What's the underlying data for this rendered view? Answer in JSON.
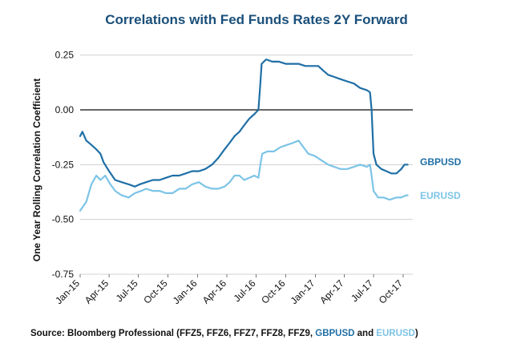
{
  "chart_data": {
    "type": "line",
    "title": "Correlations with Fed Funds Rates 2Y Forward",
    "ylabel": "One Year Rolling Correlation Coefficient",
    "xlabel": "",
    "ylim": [
      -0.75,
      0.3
    ],
    "yticks": [
      "0.25",
      "0.00",
      "-0.25",
      "-0.50",
      "-0.75"
    ],
    "ytick_values": [
      0.25,
      0.0,
      -0.25,
      -0.5,
      -0.75
    ],
    "xticks": [
      "Jan-15",
      "Apr-15",
      "Jul-15",
      "Oct-15",
      "Jan-16",
      "Apr-16",
      "Jul-16",
      "Oct-16",
      "Jan-17",
      "Apr-17",
      "Jul-17",
      "Oct-17"
    ],
    "xlim": [
      "2015-01-01",
      "2017-10-31"
    ],
    "grid": true,
    "colors": {
      "title": "#1a4f7a",
      "GBPUSD": "#1f6fa6",
      "EURUSD": "#7cc4e6",
      "grid": "#c8c8c8",
      "zero": "#333333"
    },
    "series": [
      {
        "name": "GBPUSD",
        "points": [
          [
            "2015-01-01",
            -0.12
          ],
          [
            "2015-01-08",
            -0.1
          ],
          [
            "2015-01-20",
            -0.14
          ],
          [
            "2015-02-05",
            -0.16
          ],
          [
            "2015-02-20",
            -0.18
          ],
          [
            "2015-03-05",
            -0.2
          ],
          [
            "2015-03-15",
            -0.24
          ],
          [
            "2015-04-01",
            -0.28
          ],
          [
            "2015-04-20",
            -0.32
          ],
          [
            "2015-05-10",
            -0.33
          ],
          [
            "2015-06-01",
            -0.34
          ],
          [
            "2015-06-20",
            -0.35
          ],
          [
            "2015-07-05",
            -0.34
          ],
          [
            "2015-07-25",
            -0.33
          ],
          [
            "2015-08-15",
            -0.32
          ],
          [
            "2015-09-05",
            -0.32
          ],
          [
            "2015-09-25",
            -0.31
          ],
          [
            "2015-10-15",
            -0.3
          ],
          [
            "2015-11-05",
            -0.3
          ],
          [
            "2015-11-25",
            -0.29
          ],
          [
            "2015-12-15",
            -0.28
          ],
          [
            "2016-01-05",
            -0.28
          ],
          [
            "2016-01-25",
            -0.27
          ],
          [
            "2016-02-15",
            -0.25
          ],
          [
            "2016-03-05",
            -0.22
          ],
          [
            "2016-03-25",
            -0.18
          ],
          [
            "2016-04-10",
            -0.15
          ],
          [
            "2016-04-25",
            -0.12
          ],
          [
            "2016-05-10",
            -0.1
          ],
          [
            "2016-05-25",
            -0.07
          ],
          [
            "2016-06-10",
            -0.04
          ],
          [
            "2016-06-25",
            -0.02
          ],
          [
            "2016-07-08",
            0.0
          ],
          [
            "2016-07-14",
            0.12
          ],
          [
            "2016-07-18",
            0.21
          ],
          [
            "2016-08-01",
            0.23
          ],
          [
            "2016-08-20",
            0.22
          ],
          [
            "2016-09-10",
            0.22
          ],
          [
            "2016-10-01",
            0.21
          ],
          [
            "2016-10-20",
            0.21
          ],
          [
            "2016-11-10",
            0.21
          ],
          [
            "2016-12-01",
            0.2
          ],
          [
            "2016-12-20",
            0.2
          ],
          [
            "2017-01-10",
            0.2
          ],
          [
            "2017-01-25",
            0.18
          ],
          [
            "2017-02-10",
            0.16
          ],
          [
            "2017-03-01",
            0.15
          ],
          [
            "2017-03-20",
            0.14
          ],
          [
            "2017-04-10",
            0.13
          ],
          [
            "2017-05-01",
            0.12
          ],
          [
            "2017-05-20",
            0.1
          ],
          [
            "2017-06-10",
            0.09
          ],
          [
            "2017-06-20",
            0.08
          ],
          [
            "2017-06-25",
            0.0
          ],
          [
            "2017-07-01",
            -0.2
          ],
          [
            "2017-07-10",
            -0.25
          ],
          [
            "2017-07-25",
            -0.27
          ],
          [
            "2017-08-10",
            -0.28
          ],
          [
            "2017-08-25",
            -0.29
          ],
          [
            "2017-09-10",
            -0.29
          ],
          [
            "2017-09-25",
            -0.27
          ],
          [
            "2017-10-05",
            -0.25
          ],
          [
            "2017-10-15",
            -0.25
          ]
        ]
      },
      {
        "name": "EURUSD",
        "points": [
          [
            "2015-01-01",
            -0.46
          ],
          [
            "2015-01-20",
            -0.42
          ],
          [
            "2015-02-05",
            -0.34
          ],
          [
            "2015-02-20",
            -0.3
          ],
          [
            "2015-03-05",
            -0.32
          ],
          [
            "2015-03-20",
            -0.3
          ],
          [
            "2015-04-05",
            -0.34
          ],
          [
            "2015-04-20",
            -0.37
          ],
          [
            "2015-05-10",
            -0.39
          ],
          [
            "2015-06-01",
            -0.4
          ],
          [
            "2015-06-20",
            -0.38
          ],
          [
            "2015-07-10",
            -0.37
          ],
          [
            "2015-07-25",
            -0.36
          ],
          [
            "2015-08-15",
            -0.37
          ],
          [
            "2015-09-05",
            -0.37
          ],
          [
            "2015-09-25",
            -0.38
          ],
          [
            "2015-10-15",
            -0.38
          ],
          [
            "2015-11-05",
            -0.36
          ],
          [
            "2015-11-25",
            -0.36
          ],
          [
            "2015-12-15",
            -0.34
          ],
          [
            "2016-01-05",
            -0.33
          ],
          [
            "2016-01-25",
            -0.35
          ],
          [
            "2016-02-15",
            -0.36
          ],
          [
            "2016-03-05",
            -0.36
          ],
          [
            "2016-03-25",
            -0.35
          ],
          [
            "2016-04-10",
            -0.33
          ],
          [
            "2016-04-25",
            -0.3
          ],
          [
            "2016-05-10",
            -0.3
          ],
          [
            "2016-05-25",
            -0.32
          ],
          [
            "2016-06-10",
            -0.31
          ],
          [
            "2016-06-25",
            -0.3
          ],
          [
            "2016-07-08",
            -0.31
          ],
          [
            "2016-07-14",
            -0.25
          ],
          [
            "2016-07-20",
            -0.2
          ],
          [
            "2016-08-05",
            -0.19
          ],
          [
            "2016-08-25",
            -0.19
          ],
          [
            "2016-09-15",
            -0.17
          ],
          [
            "2016-10-05",
            -0.16
          ],
          [
            "2016-10-25",
            -0.15
          ],
          [
            "2016-11-10",
            -0.14
          ],
          [
            "2016-11-25",
            -0.17
          ],
          [
            "2016-12-10",
            -0.2
          ],
          [
            "2016-12-30",
            -0.21
          ],
          [
            "2017-01-20",
            -0.23
          ],
          [
            "2017-02-10",
            -0.25
          ],
          [
            "2017-03-01",
            -0.26
          ],
          [
            "2017-03-20",
            -0.27
          ],
          [
            "2017-04-10",
            -0.27
          ],
          [
            "2017-05-01",
            -0.26
          ],
          [
            "2017-05-20",
            -0.25
          ],
          [
            "2017-06-10",
            -0.26
          ],
          [
            "2017-06-20",
            -0.25
          ],
          [
            "2017-06-25",
            -0.3
          ],
          [
            "2017-07-01",
            -0.37
          ],
          [
            "2017-07-15",
            -0.4
          ],
          [
            "2017-08-01",
            -0.4
          ],
          [
            "2017-08-20",
            -0.41
          ],
          [
            "2017-09-10",
            -0.4
          ],
          [
            "2017-09-25",
            -0.4
          ],
          [
            "2017-10-10",
            -0.39
          ],
          [
            "2017-10-15",
            -0.39
          ]
        ]
      }
    ]
  },
  "source": {
    "prefix": "Source: Bloomberg Professional (FFZ5, FFZ6, FFZ7, FFZ8, FFZ9, ",
    "gbp": "GBPUSD",
    "and": " and ",
    "eur": "EURUSD",
    "suffix": ")"
  }
}
